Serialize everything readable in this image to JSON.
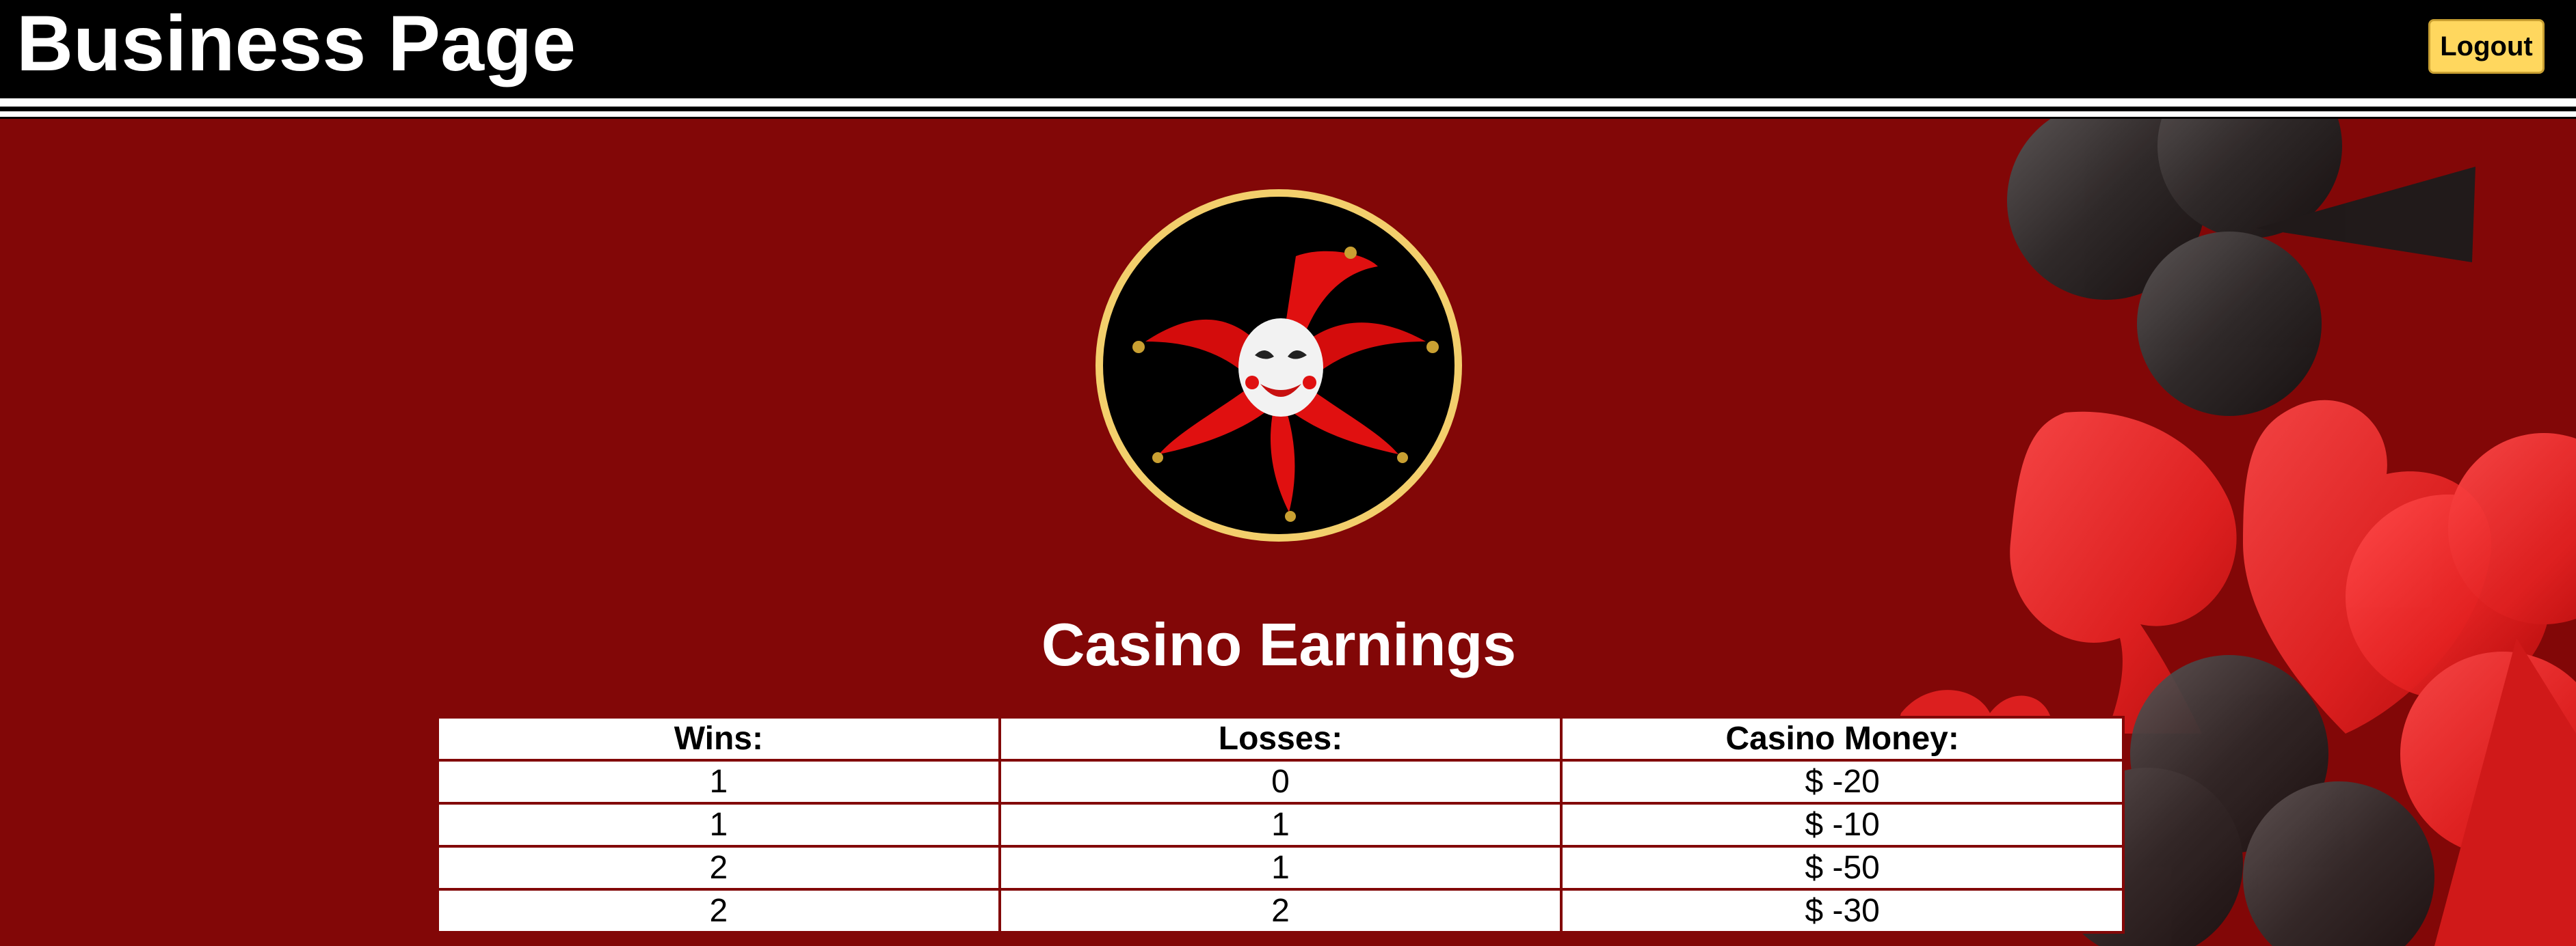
{
  "header": {
    "title": "Business Page",
    "logout_label": "Logout",
    "background_color": "#000000"
  },
  "main": {
    "background_color": "#820707",
    "logo_icon": "jester-icon",
    "decoration": "playing-card-suits (spade, heart, club)",
    "section_title": "Casino Earnings",
    "table": {
      "columns": [
        "Wins:",
        "Losses:",
        "Casino Money:"
      ],
      "rows": [
        [
          "1",
          "0",
          "$ -20"
        ],
        [
          "1",
          "1",
          "$ -10"
        ],
        [
          "2",
          "1",
          "$ -50"
        ],
        [
          "2",
          "2",
          "$ -30"
        ]
      ]
    }
  },
  "colors": {
    "accent_button": "#ffd75e",
    "logo_ring": "#f3cf6c",
    "jester_red": "#e01010"
  }
}
